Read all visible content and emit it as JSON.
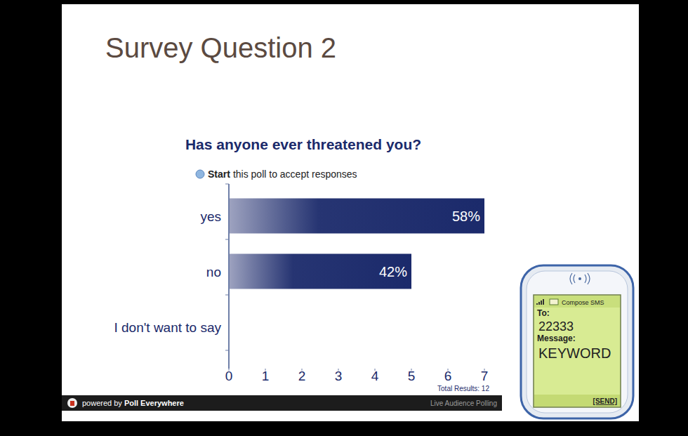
{
  "slide": {
    "title": "Survey Question 2"
  },
  "chart_data": {
    "type": "bar",
    "orientation": "horizontal",
    "title": "Has anyone ever threatened you?",
    "categories": [
      "yes",
      "no",
      "I don't want to say"
    ],
    "values": [
      7,
      5,
      0
    ],
    "value_labels": [
      "58%",
      "42%",
      null
    ],
    "color": "#1b2a6b",
    "xlim": [
      0,
      7
    ],
    "xticks": [
      0,
      1,
      2,
      3,
      4,
      5,
      6,
      7
    ],
    "grid": false,
    "data_labels": true
  },
  "poll": {
    "start_word": "Start",
    "start_rest": "this poll to accept responses",
    "total": "Total Results: 12",
    "powered_by": "powered by",
    "brand": "Poll Everywhere",
    "tagline": "Live Audience Polling"
  },
  "phone": {
    "header": "Compose SMS",
    "to_label": "To:",
    "to_number": "22333",
    "message_label": "Message:",
    "message": "KEYWORD",
    "send": "[SEND]"
  }
}
